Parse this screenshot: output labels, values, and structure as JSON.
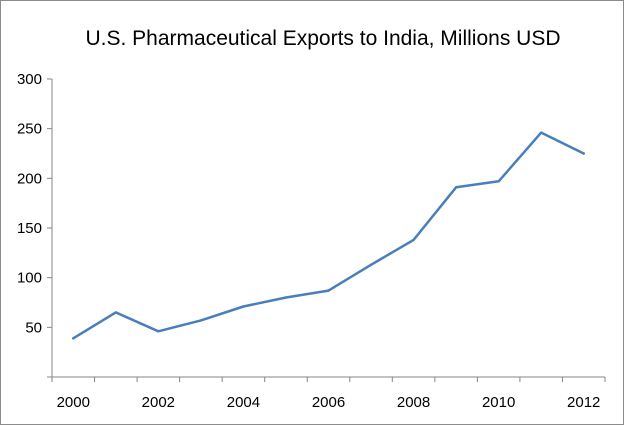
{
  "colors": {
    "series": "#4a7ebb",
    "axis": "#868686",
    "border": "#8c8c8c",
    "background": "#ffffff"
  },
  "chart_data": {
    "type": "line",
    "title": "U.S. Pharmaceutical Exports to India, Millions USD",
    "xlabel": "",
    "ylabel": "",
    "x": [
      2000,
      2001,
      2002,
      2003,
      2004,
      2005,
      2006,
      2007,
      2008,
      2009,
      2010,
      2011,
      2012
    ],
    "series": [
      {
        "values": [
          39,
          65,
          46,
          57,
          71,
          80,
          87,
          113,
          138,
          191,
          197,
          246,
          225
        ]
      }
    ],
    "xticks": [
      "2000",
      "2002",
      "2004",
      "2006",
      "2008",
      "2010",
      "2012"
    ],
    "yticks": [
      "50",
      "100",
      "150",
      "200",
      "250",
      "300"
    ],
    "ylim": [
      0,
      300
    ],
    "grid": false,
    "legend": "none"
  }
}
